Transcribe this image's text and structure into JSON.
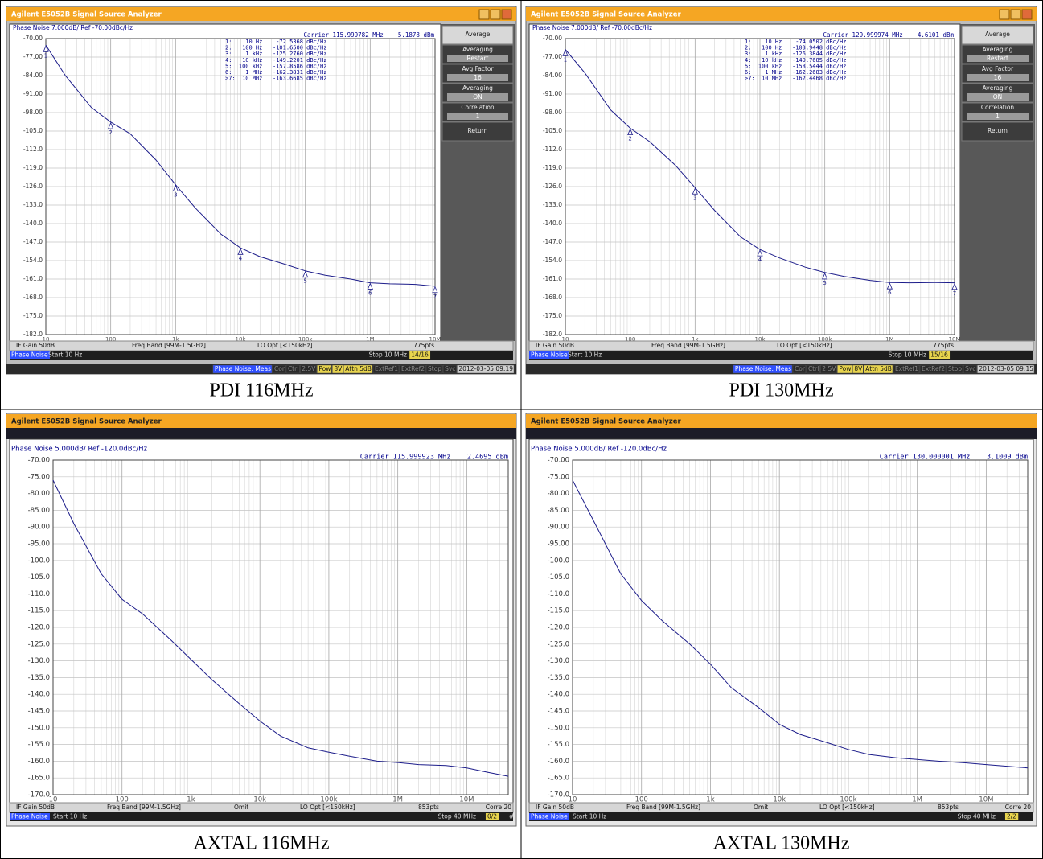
{
  "chart_data": [
    {
      "type": "line",
      "title": "Phase Noise 7.000dB/ Ref -70.00dBc/Hz",
      "carrier": "Carrier 115.999782 MHz    5.1878 dBm",
      "x_scale": "log",
      "xlim": [
        10,
        10000000
      ],
      "xticks": [
        10,
        100,
        {
          "value": 1000,
          "label": "1k"
        },
        {
          "value": 10000,
          "label": "10k"
        },
        {
          "value": 100000,
          "label": "100k"
        },
        {
          "value": 1000000,
          "label": "1M"
        },
        {
          "value": 10000000,
          "label": "10M"
        }
      ],
      "ylim": [
        -182,
        -70
      ],
      "yticks": [
        {
          "value": -70,
          "label": "-70.00"
        },
        {
          "value": -77,
          "label": "-77.00"
        },
        {
          "value": -84,
          "label": "-84.00"
        },
        {
          "value": -91,
          "label": "-91.00"
        },
        {
          "value": -98,
          "label": "-98.00"
        },
        {
          "value": -105,
          "label": "-105.0"
        },
        {
          "value": -112,
          "label": "-112.0"
        },
        {
          "value": -119,
          "label": "-119.0"
        },
        {
          "value": -126,
          "label": "-126.0"
        },
        {
          "value": -133,
          "label": "-133.0"
        },
        {
          "value": -140,
          "label": "-140.0"
        },
        {
          "value": -147,
          "label": "-147.0"
        },
        {
          "value": -154,
          "label": "-154.0"
        },
        {
          "value": -161,
          "label": "-161.0"
        },
        {
          "value": -168,
          "label": "-168.0"
        },
        {
          "value": -175,
          "label": "-175.0"
        },
        {
          "value": -182,
          "label": "-182.0"
        }
      ],
      "grid": true,
      "color": "#1c1c8a",
      "x": [
        10,
        20,
        50,
        100,
        200,
        500,
        1000,
        2000,
        5000,
        10000,
        20000,
        50000,
        100000,
        200000,
        500000,
        1000000,
        2000000,
        5000000,
        10000000
      ],
      "values": [
        -72.5,
        -84,
        -96,
        -101.6,
        -106,
        -116,
        -125.3,
        -134,
        -144,
        -149.2,
        -152.5,
        -155.5,
        -157.9,
        -159.5,
        -161,
        -162.4,
        -162.8,
        -163,
        -163.7
      ],
      "markers": {
        "x": [
          10,
          100,
          1000,
          10000,
          100000,
          1000000,
          10000000
        ],
        "y": [
          -72.5368,
          -101.65,
          -125.276,
          -149.2201,
          -157.8586,
          -162.3831,
          -163.6685
        ],
        "labels": [
          "1",
          "2",
          "3",
          "4",
          "5",
          "6",
          "7"
        ]
      },
      "marker_table": [
        "1:    10 Hz    -72.5368 dBc/Hz",
        "2:   100 Hz   -101.6500 dBc/Hz",
        "3:    1 kHz   -125.2760 dBc/Hz",
        "4:   10 kHz   -149.2201 dBc/Hz",
        "5:  100 kHz   -157.8586 dBc/Hz",
        "6:    1 MHz   -162.3831 dBc/Hz",
        ">7:  10 MHz   -163.6685 dBc/Hz"
      ]
    },
    {
      "type": "line",
      "title": "Phase Noise 7.000dB/ Ref -70.00dBc/Hz",
      "carrier": "Carrier 129.999974 MHz    4.6101 dBm",
      "x_scale": "log",
      "xlim": [
        10,
        10000000
      ],
      "xticks": [
        10,
        100,
        {
          "value": 1000,
          "label": "1k"
        },
        {
          "value": 10000,
          "label": "10k"
        },
        {
          "value": 100000,
          "label": "100k"
        },
        {
          "value": 1000000,
          "label": "1M"
        },
        {
          "value": 10000000,
          "label": "10M"
        }
      ],
      "ylim": [
        -182,
        -70
      ],
      "yticks": [
        {
          "value": -70,
          "label": "-70.00"
        },
        {
          "value": -77,
          "label": "-77.00"
        },
        {
          "value": -84,
          "label": "-84.00"
        },
        {
          "value": -91,
          "label": "-91.00"
        },
        {
          "value": -98,
          "label": "-98.00"
        },
        {
          "value": -105,
          "label": "-105.0"
        },
        {
          "value": -112,
          "label": "-112.0"
        },
        {
          "value": -119,
          "label": "-119.0"
        },
        {
          "value": -126,
          "label": "-126.0"
        },
        {
          "value": -133,
          "label": "-133.0"
        },
        {
          "value": -140,
          "label": "-140.0"
        },
        {
          "value": -147,
          "label": "-147.0"
        },
        {
          "value": -154,
          "label": "-154.0"
        },
        {
          "value": -161,
          "label": "-161.0"
        },
        {
          "value": -168,
          "label": "-168.0"
        },
        {
          "value": -175,
          "label": "-175.0"
        },
        {
          "value": -182,
          "label": "-182.0"
        }
      ],
      "grid": true,
      "color": "#1c1c8a",
      "x": [
        10,
        20,
        50,
        100,
        200,
        500,
        1000,
        2000,
        5000,
        10000,
        20000,
        50000,
        100000,
        200000,
        500000,
        1000000,
        2000000,
        5000000,
        10000000
      ],
      "values": [
        -74.1,
        -83,
        -97,
        -103.9,
        -109,
        -118,
        -126.4,
        -135,
        -145,
        -149.8,
        -153,
        -156.5,
        -158.5,
        -160,
        -161.5,
        -162.3,
        -162.4,
        -162.3,
        -162.4
      ],
      "markers": {
        "x": [
          10,
          100,
          1000,
          10000,
          100000,
          1000000,
          10000000
        ],
        "y": [
          -74.0502,
          -103.9448,
          -126.3844,
          -149.7685,
          -158.5444,
          -162.2683,
          -162.4468
        ],
        "labels": [
          "1",
          "2",
          "3",
          "4",
          "5",
          "6",
          "7"
        ]
      },
      "marker_table": [
        "1:    10 Hz    -74.0502 dBc/Hz",
        "2:   100 Hz   -103.9448 dBc/Hz",
        "3:    1 kHz   -126.3844 dBc/Hz",
        "4:   10 kHz   -149.7685 dBc/Hz",
        "5:  100 kHz   -158.5444 dBc/Hz",
        "6:    1 MHz   -162.2683 dBc/Hz",
        ">7:  10 MHz   -162.4468 dBc/Hz"
      ]
    },
    {
      "type": "line",
      "title": "Phase Noise 5.000dB/ Ref -120.0dBc/Hz",
      "carrier": "Carrier 115.999923 MHz    2.4695 dBm",
      "x_scale": "log",
      "xlim": [
        10,
        40000000
      ],
      "xticks": [
        10,
        100,
        {
          "value": 1000,
          "label": "1k"
        },
        {
          "value": 10000,
          "label": "10k"
        },
        {
          "value": 100000,
          "label": "100k"
        },
        {
          "value": 1000000,
          "label": "1M"
        },
        {
          "value": 10000000,
          "label": "10M"
        }
      ],
      "ylim": [
        -170,
        -70
      ],
      "yticks": [
        {
          "value": -70,
          "label": "-70.00"
        },
        {
          "value": -75,
          "label": "-75.00"
        },
        {
          "value": -80,
          "label": "-80.00"
        },
        {
          "value": -85,
          "label": "-85.00"
        },
        {
          "value": -90,
          "label": "-90.00"
        },
        {
          "value": -95,
          "label": "-95.00"
        },
        {
          "value": -100,
          "label": "-100.0"
        },
        {
          "value": -105,
          "label": "-105.0"
        },
        {
          "value": -110,
          "label": "-110.0"
        },
        {
          "value": -115,
          "label": "-115.0"
        },
        {
          "value": -120,
          "label": "-120.0"
        },
        {
          "value": -125,
          "label": "-125.0"
        },
        {
          "value": -130,
          "label": "-130.0"
        },
        {
          "value": -135,
          "label": "-135.0"
        },
        {
          "value": -140,
          "label": "-140.0"
        },
        {
          "value": -145,
          "label": "-145.0"
        },
        {
          "value": -150,
          "label": "-150.0"
        },
        {
          "value": -155,
          "label": "-155.0"
        },
        {
          "value": -160,
          "label": "-160.0"
        },
        {
          "value": -165,
          "label": "-165.0"
        },
        {
          "value": -170,
          "label": "-170.0"
        }
      ],
      "grid": true,
      "color": "#1c1c8a",
      "x": [
        10,
        20,
        50,
        100,
        200,
        500,
        1000,
        2000,
        5000,
        10000,
        20000,
        50000,
        100000,
        200000,
        500000,
        1000000,
        2000000,
        5000000,
        10000000,
        20000000,
        40000000
      ],
      "values": [
        -76,
        -89,
        -104,
        -111.6,
        -116,
        -123.6,
        -129.6,
        -135.6,
        -142.8,
        -148,
        -152.5,
        -156,
        -157.3,
        -158.5,
        -160,
        -160.4,
        -161,
        -161.3,
        -162,
        -163.3,
        -164.5
      ]
    },
    {
      "type": "line",
      "title": "Phase Noise 5.000dB/ Ref -120.0dBc/Hz",
      "carrier": "Carrier 130.000001 MHz    3.1009 dBm",
      "x_scale": "log",
      "xlim": [
        10,
        40000000
      ],
      "xticks": [
        10,
        100,
        {
          "value": 1000,
          "label": "1k"
        },
        {
          "value": 10000,
          "label": "10k"
        },
        {
          "value": 100000,
          "label": "100k"
        },
        {
          "value": 1000000,
          "label": "1M"
        },
        {
          "value": 10000000,
          "label": "10M"
        }
      ],
      "ylim": [
        -170,
        -70
      ],
      "yticks": [
        {
          "value": -70,
          "label": "-70.00"
        },
        {
          "value": -75,
          "label": "-75.00"
        },
        {
          "value": -80,
          "label": "-80.00"
        },
        {
          "value": -85,
          "label": "-85.00"
        },
        {
          "value": -90,
          "label": "-90.00"
        },
        {
          "value": -95,
          "label": "-95.00"
        },
        {
          "value": -100,
          "label": "-100.0"
        },
        {
          "value": -105,
          "label": "-105.0"
        },
        {
          "value": -110,
          "label": "-110.0"
        },
        {
          "value": -115,
          "label": "-115.0"
        },
        {
          "value": -120,
          "label": "-120.0"
        },
        {
          "value": -125,
          "label": "-125.0"
        },
        {
          "value": -130,
          "label": "-130.0"
        },
        {
          "value": -135,
          "label": "-135.0"
        },
        {
          "value": -140,
          "label": "-140.0"
        },
        {
          "value": -145,
          "label": "-145.0"
        },
        {
          "value": -150,
          "label": "-150.0"
        },
        {
          "value": -155,
          "label": "-155.0"
        },
        {
          "value": -160,
          "label": "-160.0"
        },
        {
          "value": -165,
          "label": "-165.0"
        },
        {
          "value": -170,
          "label": "-170.0"
        }
      ],
      "grid": true,
      "color": "#1c1c8a",
      "x": [
        10,
        20,
        50,
        100,
        200,
        500,
        1000,
        2000,
        5000,
        10000,
        20000,
        50000,
        100000,
        200000,
        500000,
        1000000,
        2000000,
        5000000,
        10000000,
        20000000,
        40000000
      ],
      "values": [
        -76,
        -88,
        -104,
        -112,
        -118,
        -125,
        -131,
        -138,
        -144,
        -149,
        -152,
        -154.5,
        -156.5,
        -158,
        -159,
        -159.5,
        -160,
        -160.5,
        -161,
        -161.5,
        -162
      ]
    }
  ],
  "panels": [
    {
      "window_title": "Agilent E5052B Signal Source Analyzer",
      "softkeys": [
        {
          "label": "Average"
        },
        {
          "label": "Averaging",
          "value": "Restart"
        },
        {
          "label": "Avg Factor",
          "value": "16"
        },
        {
          "label": "Averaging",
          "value": "ON"
        },
        {
          "label": "Correlation",
          "value": "1"
        },
        {
          "label": "Return"
        }
      ],
      "status_row1": [
        "IF Gain 50dB",
        "Freq Band [99M-1.5GHz]",
        "LO Opt [<150kHz]",
        "775pts"
      ],
      "status_row2": [
        "Phase Noise",
        "Start 10 Hz",
        "Stop 10 MHz",
        "14/16"
      ],
      "status_bar": [
        "Phase Noise: Meas",
        "Cor",
        "Ctrl",
        "2.5V",
        "Pow",
        "8V",
        "Attn 5dB",
        "ExtRef1",
        "ExtRef2",
        "Stop",
        "Svc",
        "2012-03-05 09:19"
      ],
      "caption": "PDI 116MHz"
    },
    {
      "window_title": "Agilent E5052B Signal Source Analyzer",
      "softkeys": [
        {
          "label": "Average"
        },
        {
          "label": "Averaging",
          "value": "Restart"
        },
        {
          "label": "Avg Factor",
          "value": "16"
        },
        {
          "label": "Averaging",
          "value": "ON"
        },
        {
          "label": "Correlation",
          "value": "1"
        },
        {
          "label": "Return"
        }
      ],
      "status_row1": [
        "IF Gain 50dB",
        "Freq Band [99M-1.5GHz]",
        "LO Opt [<150kHz]",
        "775pts"
      ],
      "status_row2": [
        "Phase Noise",
        "Start 10 Hz",
        "Stop 10 MHz",
        "15/16"
      ],
      "status_bar": [
        "Phase Noise: Meas",
        "Cor",
        "Ctrl",
        "2.5V",
        "Pow",
        "8V",
        "Attn 5dB",
        "ExtRef1",
        "ExtRef2",
        "Stop",
        "Svc",
        "2012-03-05 09:15"
      ],
      "caption": "PDI 130MHz"
    },
    {
      "window_title": "Agilent E5052B Signal Source Analyzer",
      "status_row1": [
        "IF Gain 50dB",
        "Freq Band [99M-1.5GHz]",
        "Omit",
        "LO Opt [<150kHz]",
        "853pts",
        "Corre 20"
      ],
      "status_row2": [
        "Phase Noise",
        "Start 10 Hz",
        "Stop 40 MHz",
        "0/2",
        "#"
      ],
      "caption": "AXTAL 116MHz"
    },
    {
      "window_title": "Agilent E5052B Signal Source Analyzer",
      "status_row1": [
        "IF Gain 50dB",
        "Freq Band [99M-1.5GHz]",
        "Omit",
        "LO Opt [<150kHz]",
        "853pts",
        "Corre 20"
      ],
      "status_row2": [
        "Phase Noise",
        "Start 10 Hz",
        "Stop 40 MHz",
        "2/2"
      ],
      "caption": "AXTAL 130MHz"
    }
  ]
}
